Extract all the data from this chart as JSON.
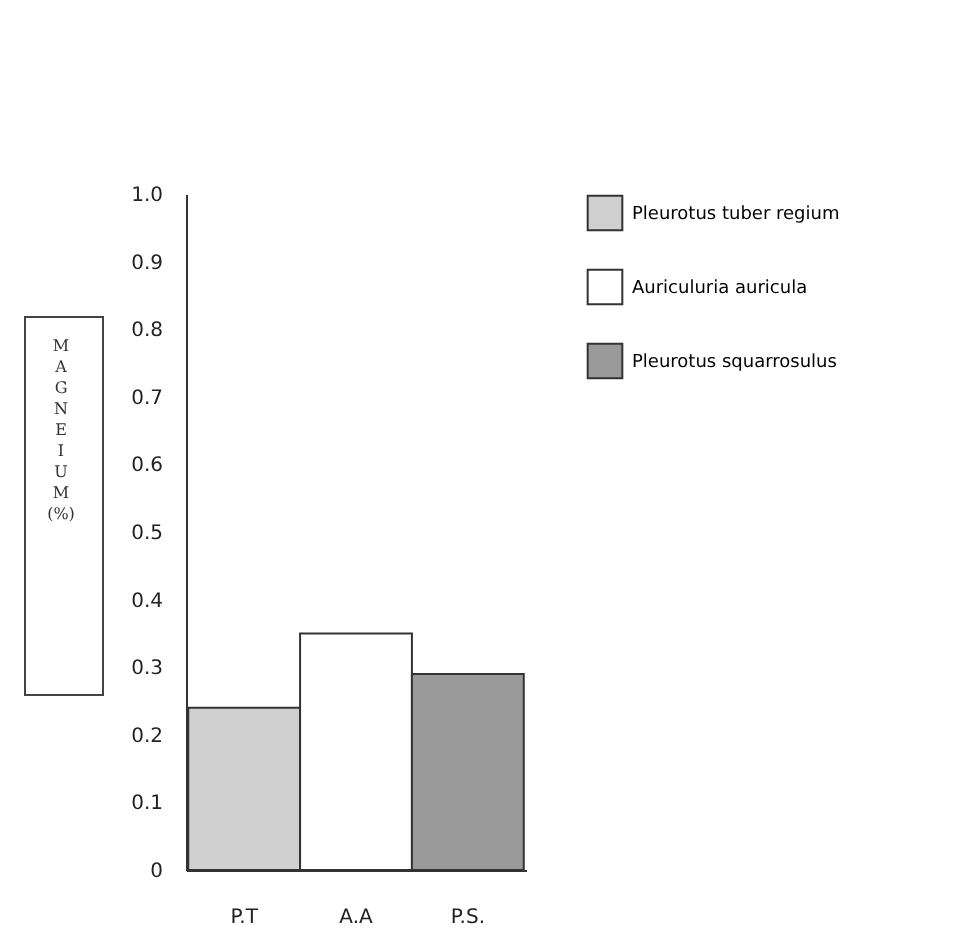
{
  "chart_data": {
    "type": "bar",
    "ylabel": "MAGNEIUM (%)",
    "categories": [
      "P.T",
      "A.A",
      "P.S."
    ],
    "series": [
      {
        "name": "Pleurotus tuber regium",
        "color": "#d0d0d0",
        "values": [
          0.24,
          null,
          null
        ]
      },
      {
        "name": "Auriculuria auricula",
        "color": "#ffffff",
        "values": [
          null,
          0.35,
          null
        ]
      },
      {
        "name": "Pleurotus squarrosulus",
        "color": "#9a9a9a",
        "values": [
          null,
          null,
          0.29
        ]
      }
    ],
    "ylim": [
      0,
      1.0
    ],
    "yticks": [
      0,
      0.1,
      0.2,
      0.3,
      0.4,
      0.5,
      0.6,
      0.7,
      0.8,
      0.9,
      {
        "value": 1.0,
        "label": "1.0"
      }
    ],
    "grid": false,
    "legend": "right"
  }
}
